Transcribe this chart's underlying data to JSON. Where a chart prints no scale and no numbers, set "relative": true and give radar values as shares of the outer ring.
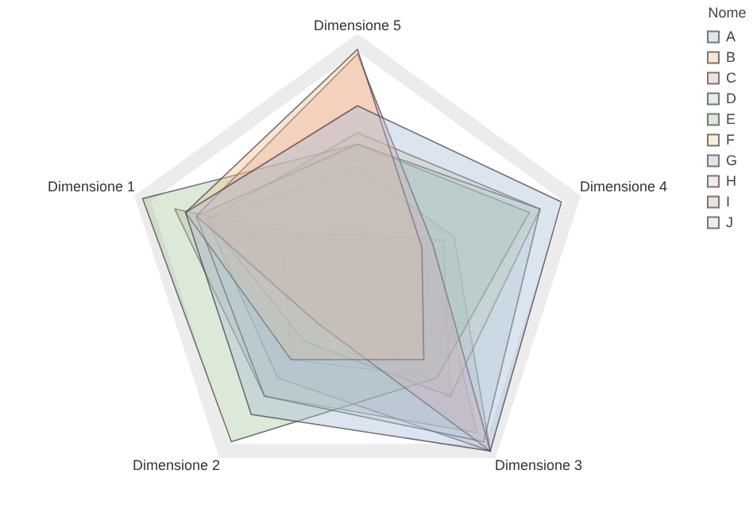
{
  "chart_data": {
    "type": "radar",
    "relative": true,
    "legend": "top right",
    "legend_title": "Nome",
    "categories": [
      "Dimensione 5",
      "Dimensione 4",
      "Dimensione 3",
      "Dimensione 2",
      "Dimensione 1"
    ],
    "series": [
      {
        "name": "A",
        "color": "#a7bcd8",
        "values": [
          0.72,
          0.95,
          1.0,
          0.8,
          0.8
        ]
      },
      {
        "name": "B",
        "color": "#f0c08f",
        "values": [
          0.97,
          0.3,
          0.5,
          0.5,
          0.8
        ]
      },
      {
        "name": "C",
        "color": "#e8a7a7",
        "values": [
          0.95,
          0.35,
          1.0,
          0.3,
          0.75
        ]
      },
      {
        "name": "D",
        "color": "#b5d3cf",
        "values": [
          0.55,
          0.85,
          0.95,
          0.7,
          0.75
        ]
      },
      {
        "name": "E",
        "color": "#a8c9a0",
        "values": [
          0.55,
          0.8,
          0.6,
          0.95,
          1.0
        ]
      },
      {
        "name": "F",
        "color": "#e5d79a",
        "values": [
          0.6,
          0.85,
          0.7,
          0.4,
          0.7
        ]
      },
      {
        "name": "G",
        "color": "#c6b3cf",
        "values": [
          0.45,
          0.45,
          1.0,
          0.6,
          0.7
        ]
      },
      {
        "name": "H",
        "color": "#eec3cc",
        "values": [
          0.15,
          0.4,
          0.7,
          0.2,
          0.5
        ]
      },
      {
        "name": "I",
        "color": "#cdb8a8",
        "values": [
          0.1,
          0.35,
          0.9,
          0.7,
          0.85
        ]
      },
      {
        "name": "J",
        "color": "#d6d4d0",
        "values": [
          0.2,
          0.1,
          0.6,
          0.5,
          0.35
        ]
      }
    ]
  }
}
